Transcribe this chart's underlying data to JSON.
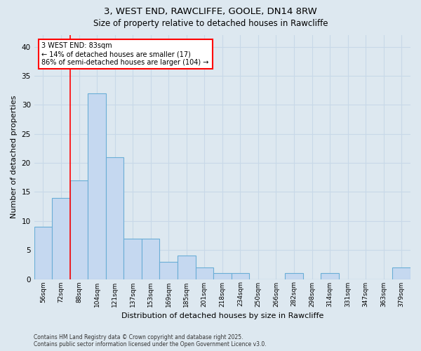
{
  "title_line1": "3, WEST END, RAWCLIFFE, GOOLE, DN14 8RW",
  "title_line2": "Size of property relative to detached houses in Rawcliffe",
  "xlabel": "Distribution of detached houses by size in Rawcliffe",
  "ylabel": "Number of detached properties",
  "categories": [
    "56sqm",
    "72sqm",
    "88sqm",
    "104sqm",
    "121sqm",
    "137sqm",
    "153sqm",
    "169sqm",
    "185sqm",
    "201sqm",
    "218sqm",
    "234sqm",
    "250sqm",
    "266sqm",
    "282sqm",
    "298sqm",
    "314sqm",
    "331sqm",
    "347sqm",
    "363sqm",
    "379sqm"
  ],
  "values": [
    9,
    14,
    17,
    32,
    21,
    7,
    7,
    3,
    4,
    2,
    1,
    1,
    0,
    0,
    1,
    0,
    1,
    0,
    0,
    0,
    2
  ],
  "bar_color": "#c5d8f0",
  "bar_edge_color": "#6aaed6",
  "annotation_line1": "3 WEST END: 83sqm",
  "annotation_line2": "← 14% of detached houses are smaller (17)",
  "annotation_line3": "86% of semi-detached houses are larger (104) →",
  "annotation_box_color": "white",
  "annotation_box_edge_color": "red",
  "vline_color": "red",
  "vline_x_index": 1.5,
  "ylim": [
    0,
    42
  ],
  "yticks": [
    0,
    5,
    10,
    15,
    20,
    25,
    30,
    35,
    40
  ],
  "grid_color": "#c8d8e8",
  "background_color": "#dde8f0",
  "footnote_line1": "Contains HM Land Registry data © Crown copyright and database right 2025.",
  "footnote_line2": "Contains public sector information licensed under the Open Government Licence v3.0."
}
